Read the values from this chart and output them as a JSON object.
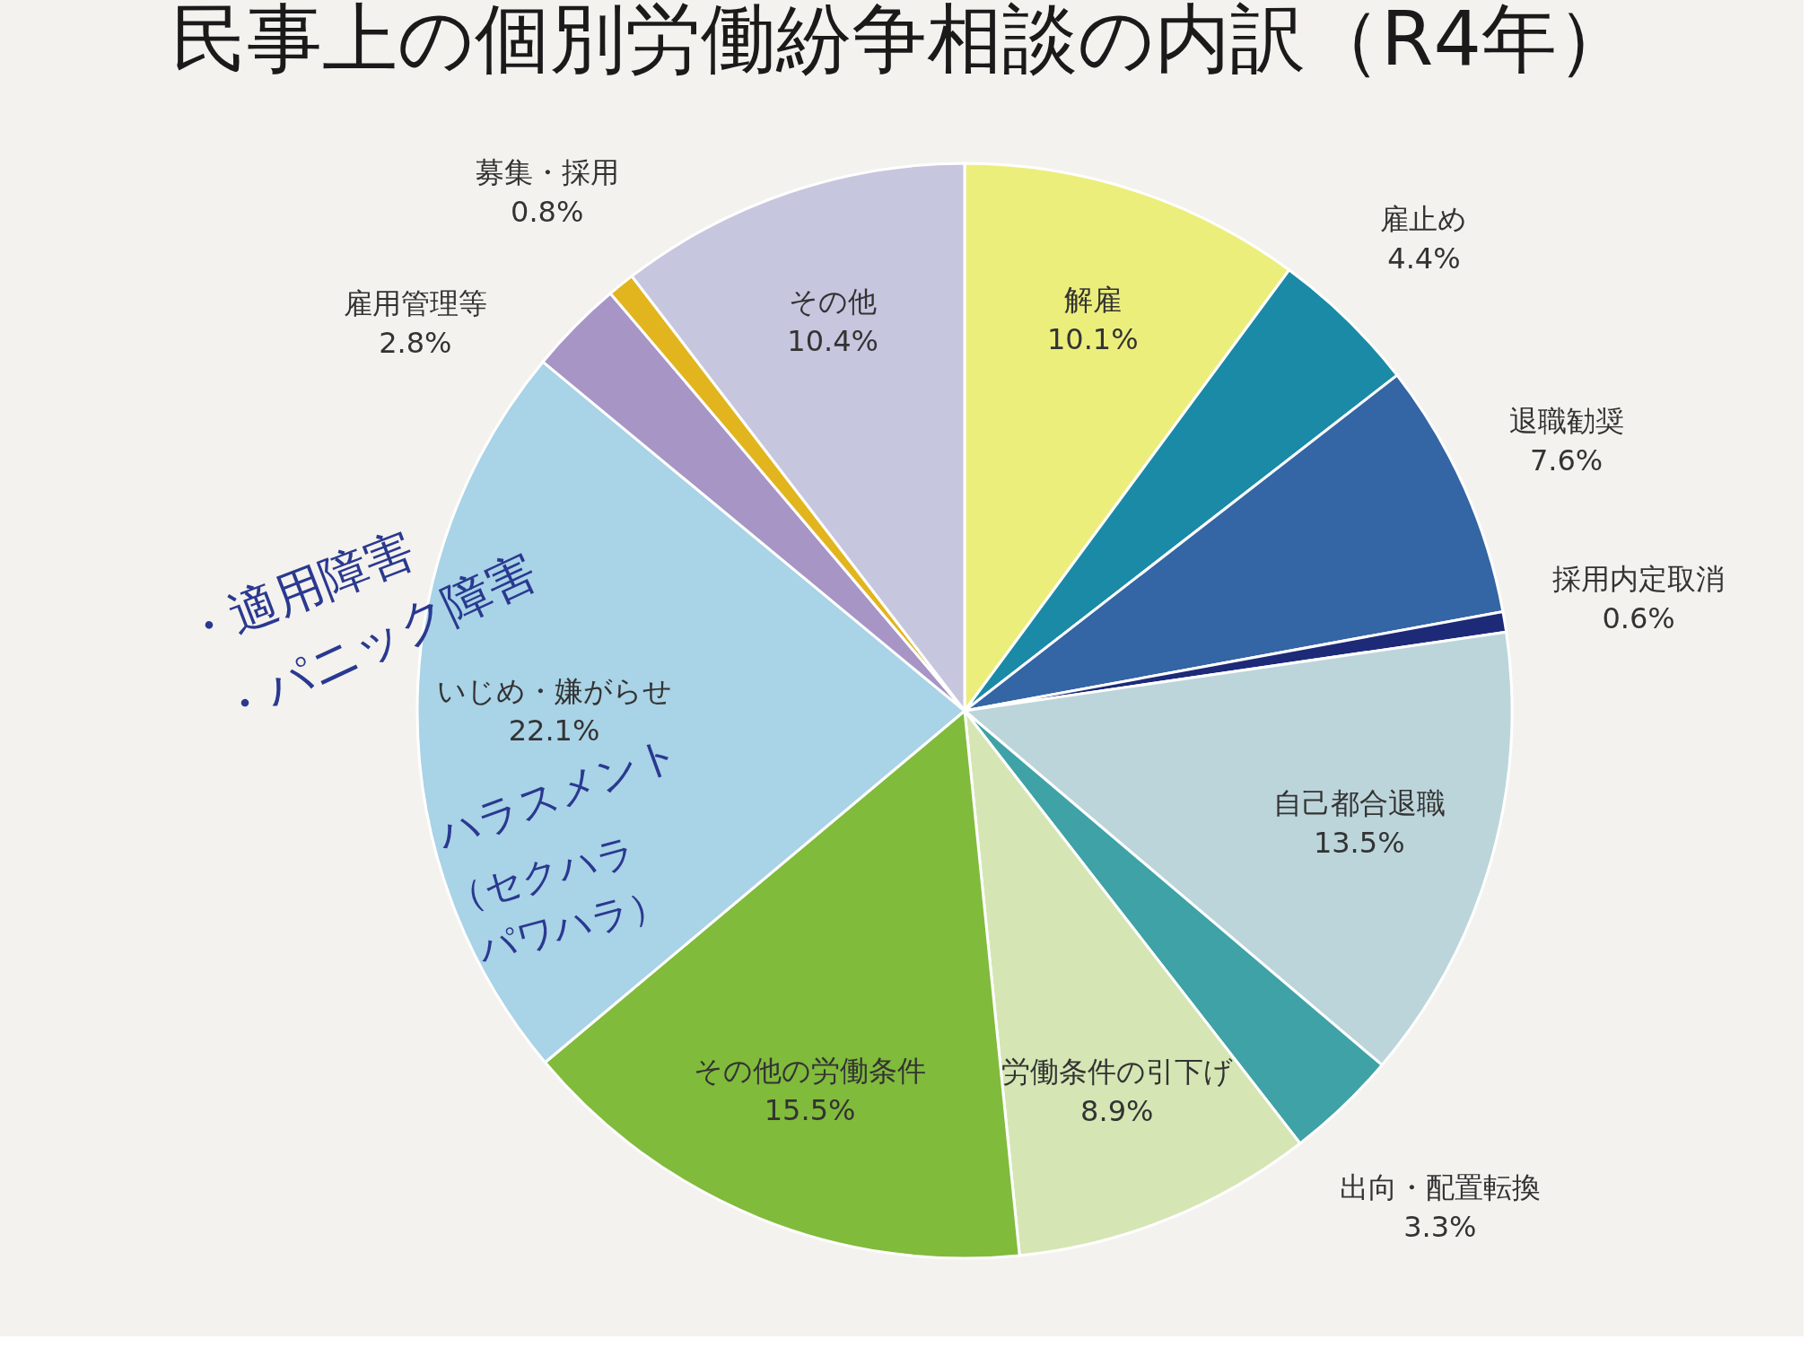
{
  "chart_data": {
    "type": "pie",
    "title": "民事上の個別労働紛争相談の内訳（R4年）",
    "categories": [
      "解雇",
      "雇止め",
      "退職勧奨",
      "採用内定取消",
      "自己都合退職",
      "出向・配置転換",
      "労働条件の引下げ",
      "その他の労働条件",
      "いじめ・嫌がらせ",
      "雇用管理等",
      "募集・採用",
      "その他"
    ],
    "values": [
      10.1,
      4.4,
      7.6,
      0.6,
      13.5,
      3.3,
      8.9,
      15.5,
      22.1,
      2.8,
      0.8,
      10.4
    ],
    "colors": [
      "#ecee7c",
      "#1a8aa6",
      "#3465a4",
      "#1c2a78",
      "#bcd5da",
      "#3ea2a6",
      "#d5e6b4",
      "#80bb3c",
      "#a9d3e6",
      "#a795c6",
      "#e2b51e",
      "#c7c6df"
    ],
    "value_labels": [
      "10.1%",
      "4.4%",
      "7.6%",
      "0.6%",
      "13.5%",
      "3.3%",
      "8.9%",
      "15.5%",
      "22.1%",
      "2.8%",
      "0.8%",
      "10.4%"
    ],
    "annotations": [
      "・適用障害",
      "・パニック障害",
      "ハラスメント",
      "（セクハラ",
      "パワハラ）"
    ]
  }
}
